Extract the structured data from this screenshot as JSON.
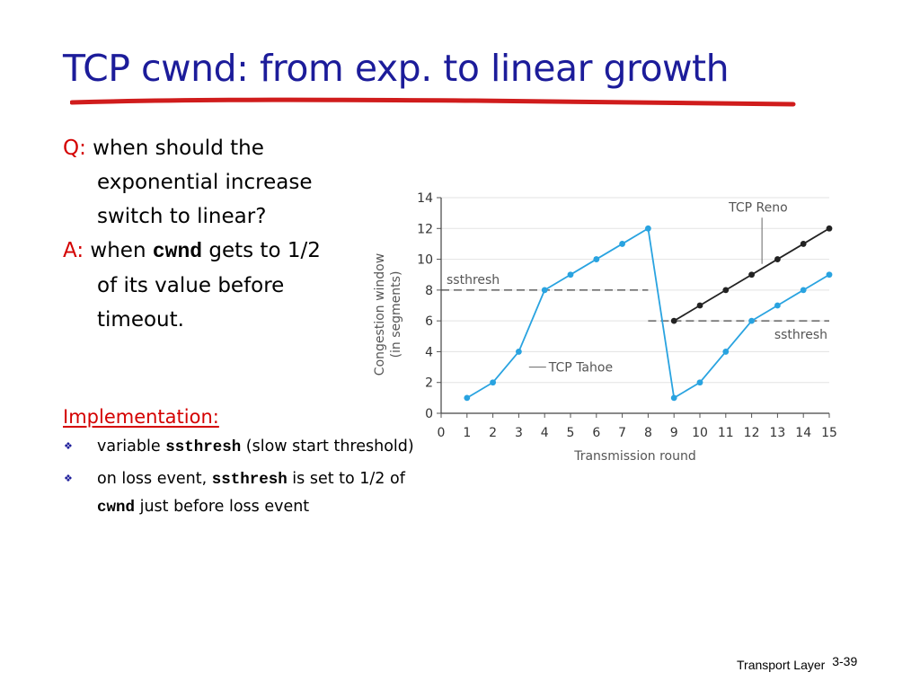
{
  "slide": {
    "title": "TCP cwnd: from exp. to linear growth",
    "accent_color": "#1c1c9a",
    "underline_color": "#d01c1c",
    "highlight_color": "#d40000"
  },
  "qa": {
    "q_label": "Q:",
    "q_text": "when should the exponential increase switch to linear?",
    "a_label": "A:",
    "a_text_before": "when",
    "a_code": "cwnd",
    "a_text_after": "gets to 1/2 of its value before timeout."
  },
  "implementation": {
    "heading": "Implementation:",
    "bullet_icon": "diamond-bullet-icon",
    "bullets": [
      {
        "before": "variable",
        "code": "ssthresh",
        "after": " (slow start threshold)"
      },
      {
        "before": "on loss event,",
        "code": "ssthresh",
        "middle": " is set to 1/2 of",
        "code2": "cwnd",
        "after": " just before loss event"
      }
    ]
  },
  "footer": {
    "label": "Transport Layer",
    "page": "3-39"
  },
  "chart_data": {
    "type": "line",
    "xlabel": "Transmission round",
    "ylabel_line1": "Congestion window",
    "ylabel_line2": "(in segments)",
    "xlim": [
      0,
      15
    ],
    "ylim": [
      0,
      14
    ],
    "x_ticks": [
      "0",
      "1",
      "2",
      "3",
      "4",
      "5",
      "6",
      "7",
      "8",
      "9",
      "10",
      "11",
      "12",
      "13",
      "14",
      "15"
    ],
    "y_ticks": [
      "0",
      "2",
      "4",
      "6",
      "8",
      "10",
      "12",
      "14"
    ],
    "grid": "horizontal",
    "series": [
      {
        "name": "TCP Tahoe",
        "color": "#29a3e0",
        "x": [
          1,
          2,
          3,
          4,
          5,
          6,
          7,
          8,
          9,
          10,
          11,
          12,
          13,
          14,
          15
        ],
        "y": [
          1,
          2,
          4,
          8,
          9,
          10,
          11,
          12,
          1,
          2,
          4,
          6,
          7,
          8,
          9
        ]
      },
      {
        "name": "TCP Reno",
        "color": "#222222",
        "x": [
          9,
          10,
          11,
          12,
          13,
          14,
          15
        ],
        "y": [
          6,
          7,
          8,
          9,
          10,
          11,
          12
        ]
      }
    ],
    "thresholds": [
      {
        "label": "ssthresh",
        "y": 8,
        "x_from": 0,
        "x_to": 8
      },
      {
        "label": "ssthresh",
        "y": 6,
        "x_from": 8,
        "x_to": 15
      }
    ],
    "annotations": [
      {
        "label": "TCP Reno",
        "x": 12.4,
        "y": 9.7
      },
      {
        "label": "TCP Tahoe",
        "x": 3.5,
        "y": 3
      }
    ]
  }
}
